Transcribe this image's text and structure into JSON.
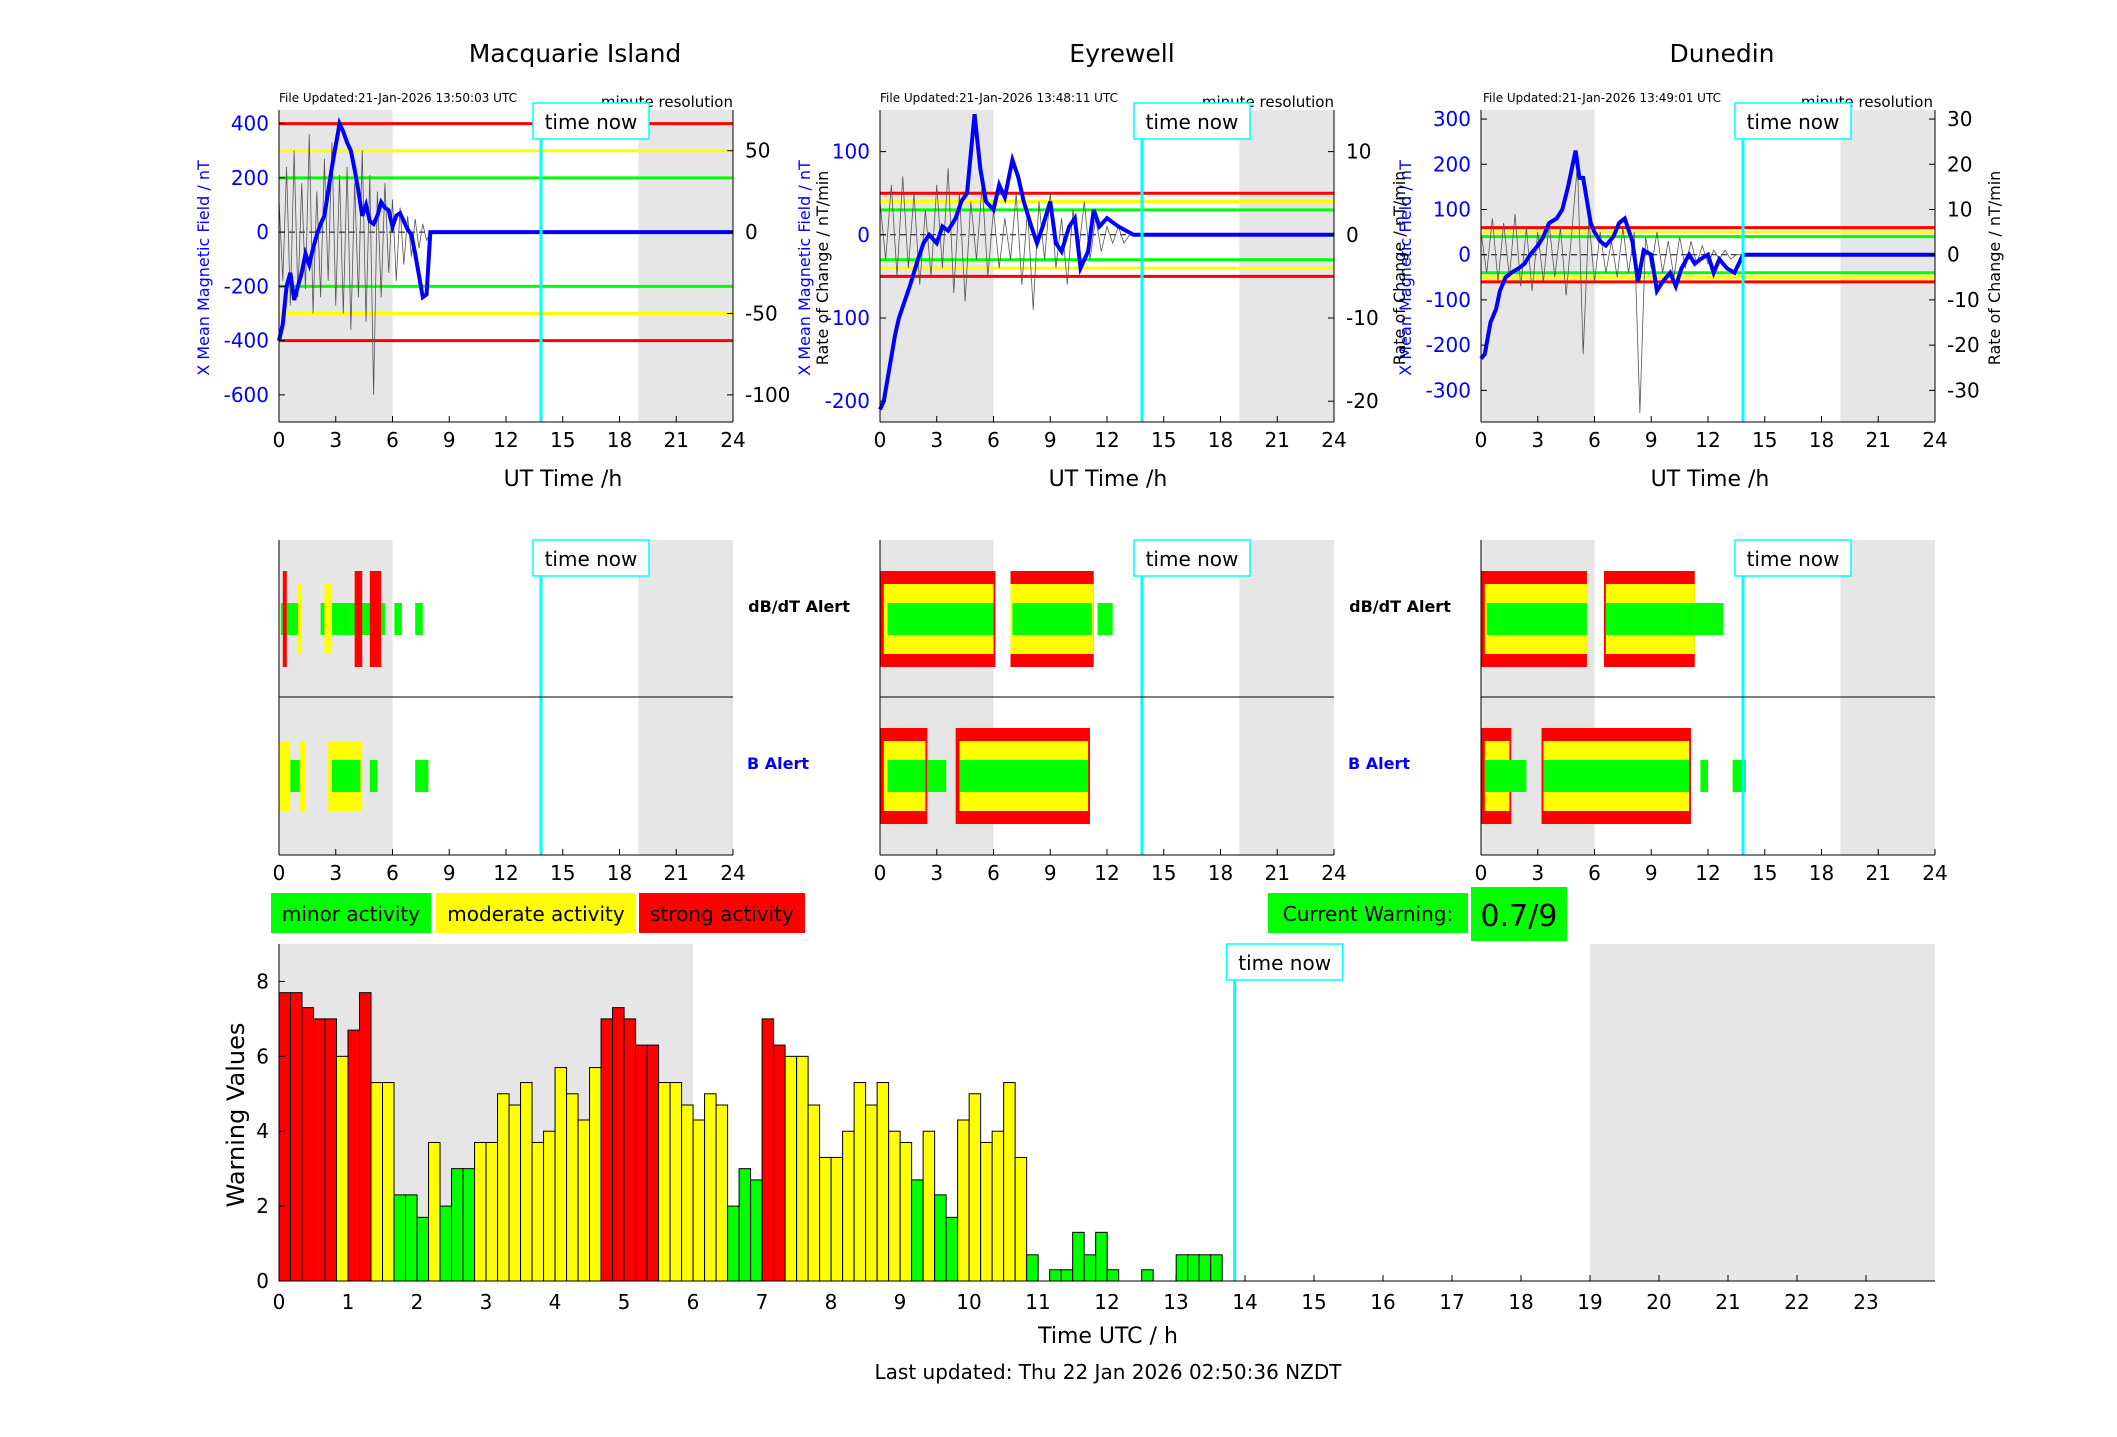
{
  "colors": {
    "red": "#ff0000",
    "yellow": "#ffff00",
    "green": "#00ff00",
    "blue": "#0000ff",
    "cyan": "#00ffff",
    "grey_band": "#e6e6e6",
    "black": "#000000"
  },
  "labels": {
    "time_now": "time now",
    "file_updated_label": "File Updated:",
    "resolution": "minute resolution",
    "ut_axis": "UT Time /h",
    "left_ylabel": "X Mean Magnetic Field / nT",
    "right_ylabel": "Rate of Change / nT/min",
    "dbdt_alert": "dB/dT Alert",
    "b_alert": "B Alert",
    "current_warning_label": "Current Warning:",
    "current_warning_value": "0.7/9",
    "bottom_xlabel": "Time UTC / h",
    "bottom_ylabel": "Warning Values",
    "last_updated": "Last updated: Thu 22 Jan 2026 02:50:36 NZDT"
  },
  "legend": [
    {
      "label": "minor activity",
      "color": "#00ff00"
    },
    {
      "label": "moderate activity",
      "color": "#ffff00"
    },
    {
      "label": "strong activity",
      "color": "#ff0000"
    }
  ],
  "chart_data": [
    {
      "type": "line",
      "station": "Macquarie Island",
      "file_updated": "21-Jan-2026 13:50:03 UTC",
      "xlim": [
        0,
        24
      ],
      "xticks": [
        0,
        3,
        6,
        9,
        12,
        15,
        18,
        21,
        24
      ],
      "ylim": [
        -700,
        450
      ],
      "yticks": [
        -600,
        -400,
        -200,
        0,
        200,
        400
      ],
      "y2lim": [
        -116.667,
        75
      ],
      "y2ticks": [
        -100,
        -50,
        0,
        50
      ],
      "thresholds_left": [
        {
          "value": 400,
          "color": "red"
        },
        {
          "value": 300,
          "color": "yellow"
        },
        {
          "value": 200,
          "color": "green"
        },
        {
          "value": -200,
          "color": "green"
        },
        {
          "value": -300,
          "color": "yellow"
        },
        {
          "value": -400,
          "color": "red"
        }
      ],
      "shaded_hours": [
        [
          0,
          6
        ],
        [
          19,
          24
        ]
      ],
      "time_now": 13.85,
      "field_x": [
        0,
        0.2,
        0.4,
        0.6,
        0.8,
        1.0,
        1.2,
        1.4,
        1.6,
        1.8,
        2.0,
        2.2,
        2.4,
        2.6,
        2.8,
        3.0,
        3.2,
        3.4,
        3.6,
        3.8,
        4.0,
        4.2,
        4.4,
        4.6,
        4.8,
        5.0,
        5.2,
        5.4,
        5.6,
        5.8,
        6.0,
        6.2,
        6.4,
        6.6,
        6.8,
        7.0,
        7.2,
        7.4,
        7.6,
        7.8,
        8.0,
        24.0
      ],
      "field_y": [
        -400,
        -340,
        -200,
        -150,
        -250,
        -200,
        -150,
        -80,
        -120,
        -60,
        -10,
        30,
        60,
        150,
        240,
        320,
        400,
        370,
        330,
        300,
        230,
        150,
        60,
        100,
        40,
        30,
        60,
        110,
        90,
        80,
        20,
        60,
        70,
        40,
        10,
        -10,
        -80,
        -160,
        -240,
        -230,
        0,
        0
      ],
      "rate_x": [
        0,
        0.2,
        0.4,
        0.6,
        0.8,
        1.0,
        1.2,
        1.4,
        1.6,
        1.8,
        2.0,
        2.2,
        2.4,
        2.6,
        2.8,
        3.0,
        3.2,
        3.4,
        3.6,
        3.8,
        4.0,
        4.2,
        4.4,
        4.6,
        4.8,
        5.0,
        5.2,
        5.4,
        5.6,
        5.8,
        6.0,
        6.2,
        6.4,
        6.6,
        6.8,
        7.0,
        7.2,
        7.4,
        7.6,
        7.8,
        8.0
      ],
      "rate_y": [
        20,
        -30,
        40,
        -45,
        50,
        -40,
        30,
        -35,
        60,
        -50,
        25,
        -40,
        45,
        -30,
        55,
        -45,
        35,
        -50,
        40,
        -60,
        30,
        -40,
        50,
        -55,
        35,
        -100,
        25,
        -40,
        30,
        -25,
        20,
        -30,
        15,
        -20,
        10,
        -15,
        8,
        -10,
        5,
        -5,
        0
      ]
    },
    {
      "type": "line",
      "station": "Eyrewell",
      "file_updated": "21-Jan-2026 13:48:11 UTC",
      "xlim": [
        0,
        24
      ],
      "xticks": [
        0,
        3,
        6,
        9,
        12,
        15,
        18,
        21,
        24
      ],
      "ylim": [
        -225,
        150
      ],
      "yticks": [
        -200,
        -100,
        0,
        100
      ],
      "y2lim": [
        -22.5,
        15
      ],
      "y2ticks": [
        -20,
        -10,
        0,
        10
      ],
      "thresholds_left": [
        {
          "value": 50,
          "color": "red"
        },
        {
          "value": 40,
          "color": "yellow"
        },
        {
          "value": 30,
          "color": "green"
        },
        {
          "value": -30,
          "color": "green"
        },
        {
          "value": -40,
          "color": "yellow"
        },
        {
          "value": -50,
          "color": "red"
        }
      ],
      "shaded_hours": [
        [
          0,
          6
        ],
        [
          19,
          24
        ]
      ],
      "time_now": 13.85,
      "field_x": [
        0,
        0.2,
        0.5,
        0.8,
        1.0,
        1.3,
        1.6,
        2.0,
        2.3,
        2.6,
        3.0,
        3.3,
        3.6,
        4.0,
        4.3,
        4.6,
        5.0,
        5.3,
        5.6,
        6.0,
        6.3,
        6.6,
        7.0,
        7.3,
        7.6,
        8.0,
        8.3,
        8.6,
        9.0,
        9.3,
        9.6,
        10.0,
        10.3,
        10.6,
        11.0,
        11.3,
        11.6,
        12.0,
        12.3,
        12.6,
        13.0,
        13.4,
        13.85,
        24.0
      ],
      "field_y": [
        -210,
        -200,
        -160,
        -120,
        -100,
        -80,
        -60,
        -30,
        -10,
        0,
        -10,
        10,
        5,
        20,
        40,
        50,
        145,
        80,
        40,
        30,
        60,
        45,
        90,
        70,
        40,
        10,
        -10,
        10,
        40,
        -10,
        -20,
        10,
        20,
        -40,
        -20,
        30,
        10,
        20,
        15,
        10,
        5,
        0,
        0,
        0
      ],
      "rate_x": [
        0,
        0.3,
        0.6,
        0.9,
        1.2,
        1.5,
        1.8,
        2.1,
        2.4,
        2.7,
        3.0,
        3.3,
        3.6,
        3.9,
        4.2,
        4.5,
        4.8,
        5.1,
        5.4,
        5.7,
        6.0,
        6.3,
        6.6,
        6.9,
        7.2,
        7.5,
        7.8,
        8.1,
        8.4,
        8.7,
        9.0,
        9.3,
        9.6,
        9.9,
        10.2,
        10.5,
        10.8,
        11.1,
        11.4,
        11.7,
        12.0,
        12.3,
        12.6,
        12.9,
        13.2,
        13.5,
        13.85
      ],
      "rate_y": [
        4,
        -3,
        6,
        -5,
        7,
        -4,
        5,
        -6,
        3,
        -5,
        6,
        -4,
        8,
        -7,
        5,
        -8,
        4,
        -3,
        6,
        -5,
        3,
        -4,
        2,
        -3,
        5,
        -6,
        3,
        -9,
        4,
        -3,
        5,
        -4,
        2,
        -6,
        3,
        -2,
        4,
        -3,
        2,
        -2,
        1,
        -1,
        1,
        -1,
        0,
        0,
        0
      ]
    },
    {
      "type": "line",
      "station": "Dunedin",
      "file_updated": "21-Jan-2026 13:49:01 UTC",
      "xlim": [
        0,
        24
      ],
      "xticks": [
        0,
        3,
        6,
        9,
        12,
        15,
        18,
        21,
        24
      ],
      "ylim": [
        -370,
        320
      ],
      "yticks": [
        -300,
        -200,
        -100,
        0,
        100,
        200,
        300
      ],
      "y2lim": [
        -37,
        32
      ],
      "y2ticks": [
        -30,
        -20,
        -10,
        0,
        10,
        20,
        30
      ],
      "thresholds_left": [
        {
          "value": 60,
          "color": "red"
        },
        {
          "value": 50,
          "color": "yellow"
        },
        {
          "value": 40,
          "color": "green"
        },
        {
          "value": -40,
          "color": "green"
        },
        {
          "value": -50,
          "color": "yellow"
        },
        {
          "value": -60,
          "color": "red"
        }
      ],
      "shaded_hours": [
        [
          0,
          6
        ],
        [
          19,
          24
        ]
      ],
      "time_now": 13.85,
      "field_x": [
        0,
        0.2,
        0.5,
        0.8,
        1.0,
        1.3,
        1.6,
        2.0,
        2.3,
        2.6,
        3.0,
        3.3,
        3.6,
        4.0,
        4.3,
        4.6,
        5.0,
        5.2,
        5.4,
        5.6,
        5.8,
        6.0,
        6.3,
        6.6,
        7.0,
        7.3,
        7.6,
        8.0,
        8.3,
        8.6,
        9.0,
        9.3,
        9.6,
        10.0,
        10.3,
        10.6,
        11.0,
        11.3,
        11.6,
        12.0,
        12.3,
        12.6,
        13.0,
        13.4,
        13.85,
        24.0
      ],
      "field_y": [
        -230,
        -220,
        -150,
        -120,
        -80,
        -50,
        -40,
        -30,
        -20,
        0,
        20,
        40,
        70,
        80,
        100,
        150,
        230,
        170,
        170,
        120,
        70,
        50,
        30,
        20,
        40,
        70,
        80,
        30,
        -60,
        10,
        0,
        -80,
        -60,
        -40,
        -70,
        -30,
        0,
        -20,
        -10,
        0,
        -40,
        -10,
        -30,
        -40,
        0,
        0
      ],
      "rate_x": [
        0,
        0.3,
        0.6,
        0.9,
        1.2,
        1.5,
        1.8,
        2.1,
        2.4,
        2.7,
        3.0,
        3.3,
        3.6,
        3.9,
        4.2,
        4.5,
        4.8,
        5.1,
        5.4,
        5.7,
        6.0,
        6.3,
        6.6,
        6.9,
        7.2,
        7.5,
        7.8,
        8.1,
        8.4,
        8.7,
        9.0,
        9.3,
        9.6,
        9.9,
        10.2,
        10.5,
        10.8,
        11.1,
        11.4,
        11.7,
        12.0,
        12.3,
        12.6,
        12.9,
        13.2,
        13.5,
        13.85
      ],
      "rate_y": [
        5,
        -4,
        8,
        -6,
        7,
        -5,
        9,
        -7,
        6,
        -8,
        5,
        -6,
        7,
        -5,
        6,
        -9,
        5,
        20,
        -22,
        8,
        -6,
        5,
        -4,
        3,
        -5,
        6,
        -4,
        5,
        -35,
        4,
        -3,
        5,
        -4,
        3,
        -5,
        4,
        -3,
        3,
        -2,
        2,
        -2,
        1,
        -1,
        1,
        -1,
        0,
        0
      ]
    },
    {
      "type": "bar",
      "name": "Warning Values",
      "xlim": [
        0,
        24
      ],
      "xticks": [
        0,
        1,
        2,
        3,
        4,
        5,
        6,
        7,
        8,
        9,
        10,
        11,
        12,
        13,
        14,
        15,
        16,
        17,
        18,
        19,
        20,
        21,
        22,
        23
      ],
      "ylim": [
        0,
        9
      ],
      "yticks": [
        0,
        2,
        4,
        6,
        8
      ],
      "bin_hours": 0.1667,
      "shaded_hours": [
        [
          0,
          6
        ],
        [
          19,
          24
        ]
      ],
      "time_now": 13.85,
      "values": [
        7.7,
        7.7,
        7.3,
        7.0,
        7.0,
        6.0,
        6.7,
        7.7,
        5.3,
        5.3,
        2.3,
        2.3,
        1.7,
        3.7,
        2.0,
        3.0,
        3.0,
        3.7,
        3.7,
        5.0,
        4.7,
        5.3,
        3.7,
        4.0,
        5.7,
        5.0,
        4.3,
        5.7,
        7.0,
        7.3,
        7.0,
        6.3,
        6.3,
        5.3,
        5.3,
        4.7,
        4.3,
        5.0,
        4.7,
        2.0,
        3.0,
        2.7,
        7.0,
        6.3,
        6.0,
        6.0,
        4.7,
        3.3,
        3.3,
        4.0,
        5.3,
        4.7,
        5.3,
        4.0,
        3.7,
        2.7,
        4.0,
        2.3,
        1.7,
        4.3,
        5.0,
        3.7,
        4.0,
        5.3,
        3.3,
        0.7,
        0.0,
        0.3,
        0.3,
        1.3,
        0.7,
        1.3,
        0.3,
        0.0,
        0.0,
        0.3,
        0.0,
        0.0,
        0.7,
        0.7,
        0.7,
        0.7
      ],
      "colors": [
        "red",
        "red",
        "red",
        "red",
        "red",
        "yellow",
        "red",
        "red",
        "yellow",
        "yellow",
        "green",
        "green",
        "green",
        "yellow",
        "green",
        "green",
        "green",
        "yellow",
        "yellow",
        "yellow",
        "yellow",
        "yellow",
        "yellow",
        "yellow",
        "yellow",
        "yellow",
        "yellow",
        "yellow",
        "red",
        "red",
        "red",
        "red",
        "red",
        "yellow",
        "yellow",
        "yellow",
        "yellow",
        "yellow",
        "yellow",
        "green",
        "green",
        "green",
        "red",
        "red",
        "yellow",
        "yellow",
        "yellow",
        "yellow",
        "yellow",
        "yellow",
        "yellow",
        "yellow",
        "yellow",
        "yellow",
        "yellow",
        "green",
        "yellow",
        "green",
        "green",
        "yellow",
        "yellow",
        "yellow",
        "yellow",
        "yellow",
        "yellow",
        "green",
        "green",
        "green",
        "green",
        "green",
        "green",
        "green",
        "green",
        "green",
        "green",
        "green",
        "green",
        "green",
        "green",
        "green",
        "green",
        "green"
      ]
    }
  ],
  "alerts": [
    {
      "station": "Macquarie Island",
      "dbdt": [
        [
          0.1,
          0.6,
          "green"
        ],
        [
          0.2,
          0.2,
          "red"
        ],
        [
          0.6,
          1.2,
          "green"
        ],
        [
          1.0,
          1.2,
          "yellow"
        ],
        [
          2.2,
          3.3,
          "green"
        ],
        [
          2.4,
          2.8,
          "yellow"
        ],
        [
          3.3,
          3.8,
          "green"
        ],
        [
          3.8,
          5.6,
          "green"
        ],
        [
          4.0,
          4.4,
          "red"
        ],
        [
          4.8,
          5.4,
          "red"
        ],
        [
          6.1,
          6.5,
          "green"
        ],
        [
          7.2,
          7.6,
          "green"
        ]
      ],
      "b": [
        [
          0,
          0.6,
          "yellow"
        ],
        [
          0.6,
          1.4,
          "green"
        ],
        [
          1.1,
          1.4,
          "yellow"
        ],
        [
          2.6,
          4.4,
          "yellow"
        ],
        [
          2.8,
          4.3,
          "green"
        ],
        [
          4.8,
          5.2,
          "green"
        ],
        [
          7.2,
          7.9,
          "green"
        ]
      ]
    },
    {
      "station": "Eyrewell",
      "dbdt": [
        [
          0,
          6.1,
          "red"
        ],
        [
          0.2,
          6.0,
          "yellow"
        ],
        [
          0.4,
          6.0,
          "green"
        ],
        [
          6.9,
          11.3,
          "red"
        ],
        [
          6.9,
          11.3,
          "yellow"
        ],
        [
          7.0,
          11.2,
          "green"
        ],
        [
          11.5,
          12.3,
          "green"
        ]
      ],
      "b": [
        [
          0,
          2.5,
          "red"
        ],
        [
          0.2,
          2.4,
          "yellow"
        ],
        [
          0.4,
          2.4,
          "green"
        ],
        [
          2.5,
          3.5,
          "green"
        ],
        [
          4.0,
          11.1,
          "red"
        ],
        [
          4.2,
          11.0,
          "yellow"
        ],
        [
          4.2,
          11.0,
          "green"
        ]
      ]
    },
    {
      "station": "Dunedin",
      "dbdt": [
        [
          0,
          5.6,
          "red"
        ],
        [
          0.2,
          5.6,
          "yellow"
        ],
        [
          0.3,
          5.6,
          "green"
        ],
        [
          6.5,
          11.3,
          "red"
        ],
        [
          6.6,
          11.3,
          "yellow"
        ],
        [
          6.6,
          11.3,
          "green"
        ],
        [
          11.3,
          12.8,
          "green"
        ]
      ],
      "b": [
        [
          0,
          1.6,
          "red"
        ],
        [
          0.2,
          1.5,
          "yellow"
        ],
        [
          0.2,
          2.4,
          "green"
        ],
        [
          3.2,
          11.1,
          "red"
        ],
        [
          3.3,
          11.0,
          "yellow"
        ],
        [
          3.3,
          11.0,
          "green"
        ],
        [
          11.6,
          12.0,
          "green"
        ],
        [
          13.3,
          14.0,
          "green"
        ]
      ]
    }
  ]
}
